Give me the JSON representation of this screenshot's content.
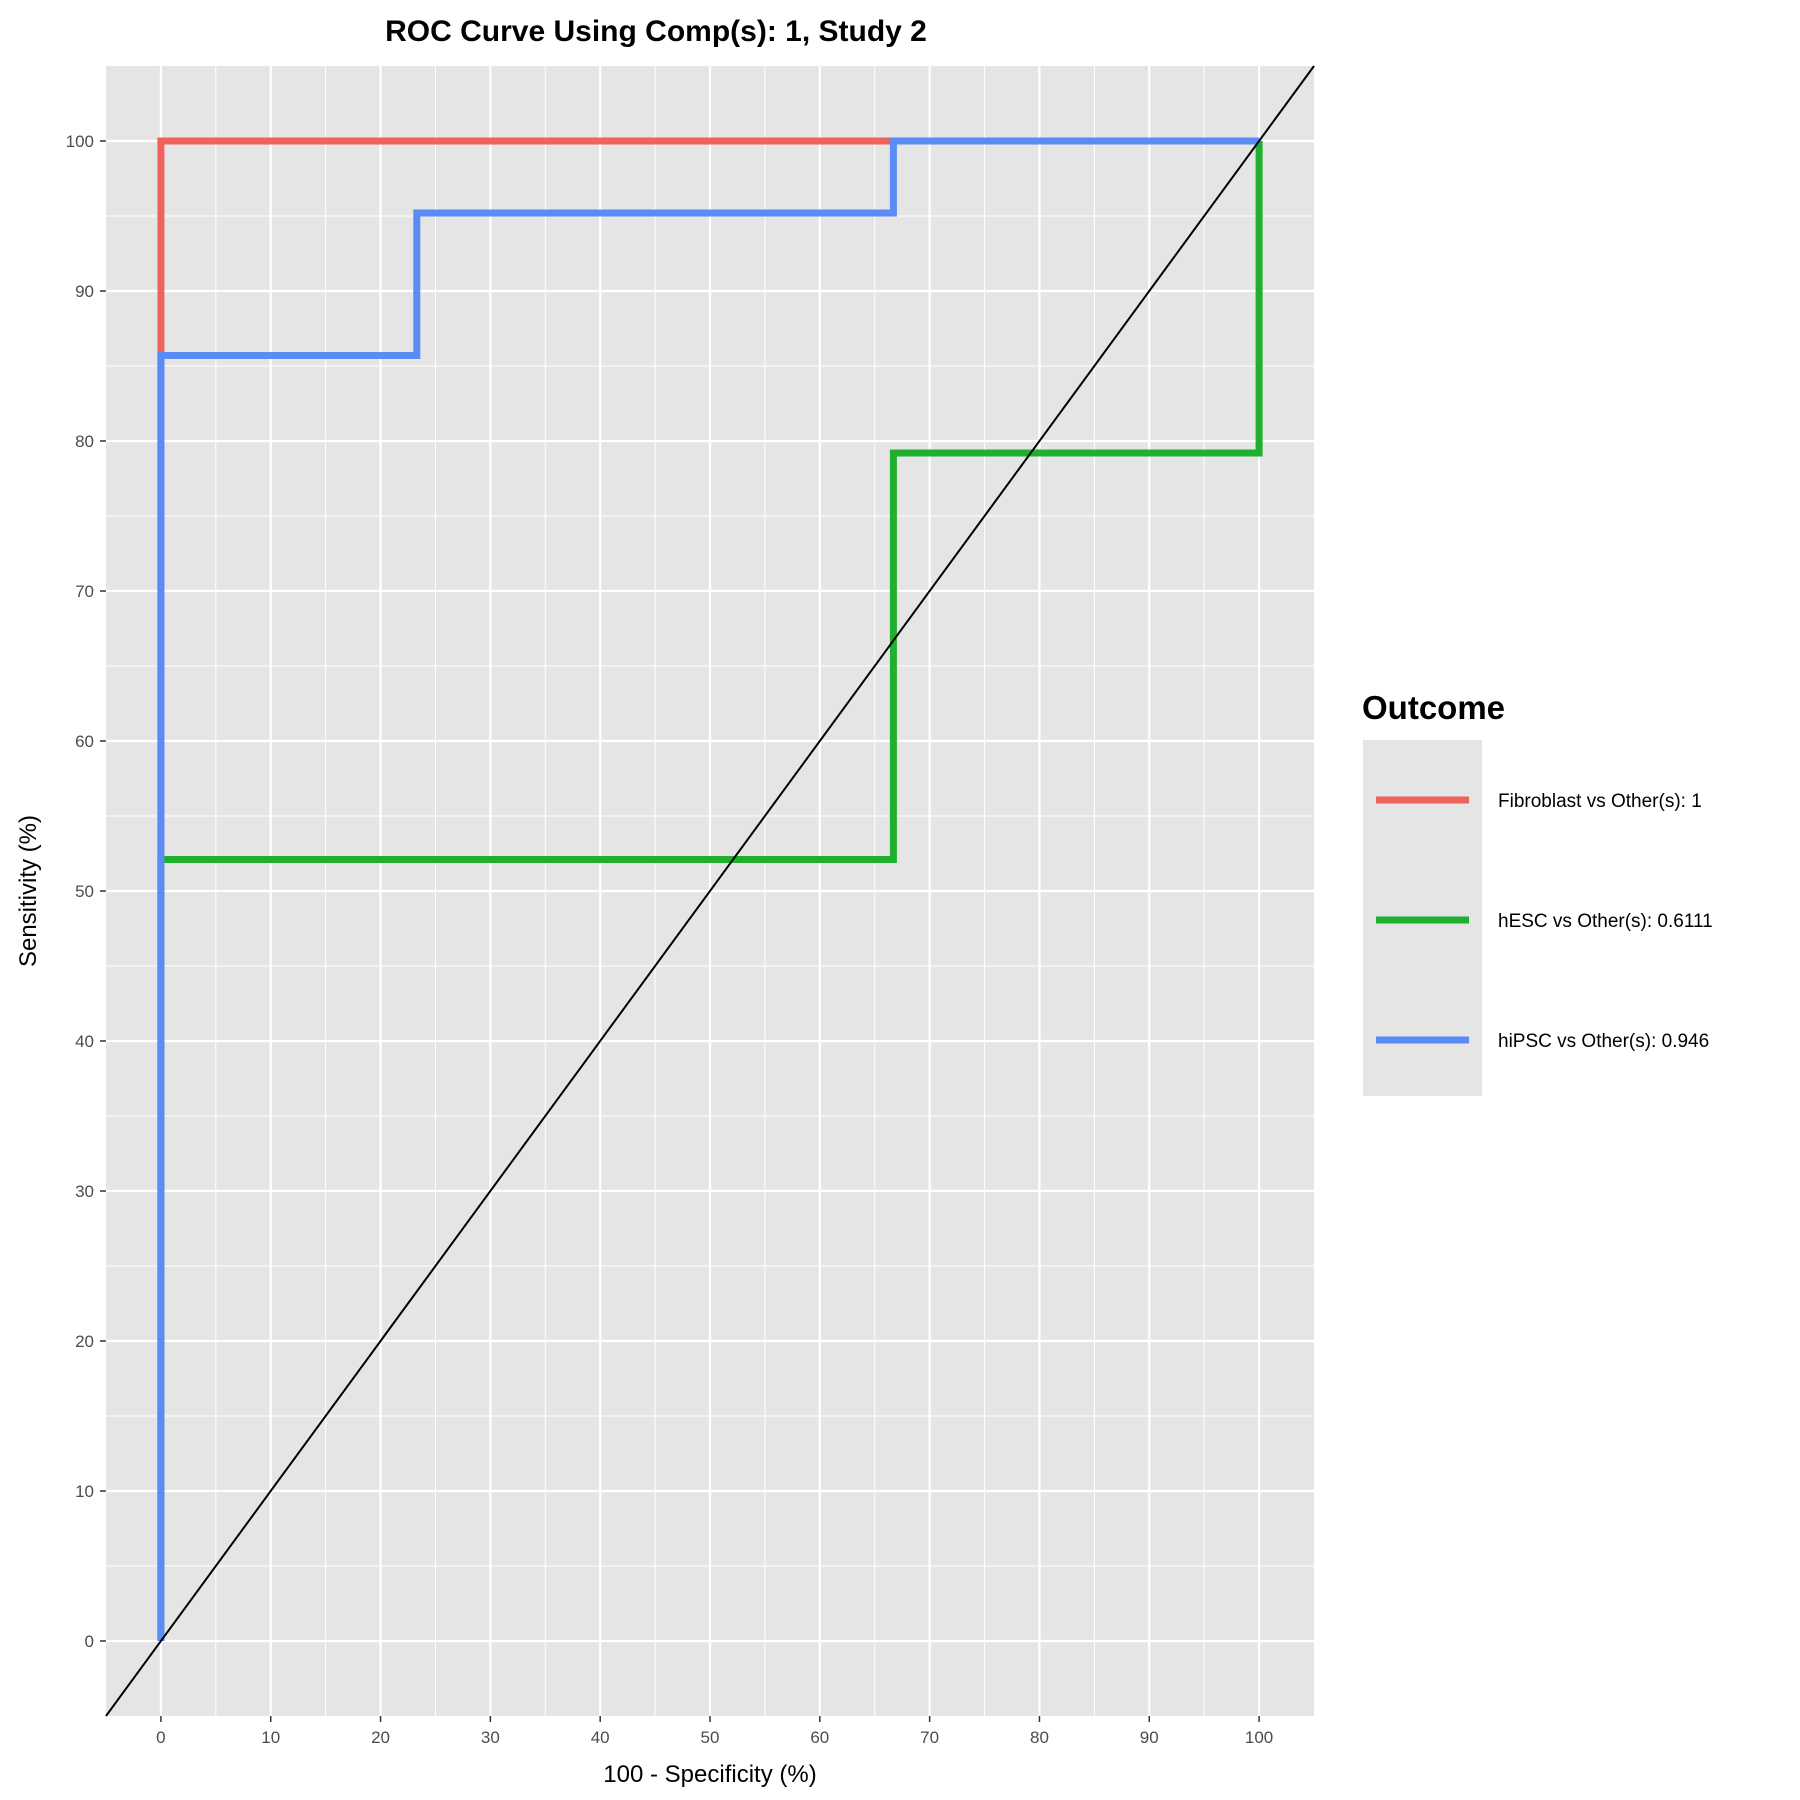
{
  "chart_data": {
    "type": "line",
    "title": "ROC Curve Using Comp(s): 1, Study 2",
    "xlabel": "100 - Specificity (%)",
    "ylabel": "Sensitivity (%)",
    "xlim": [
      -5,
      105
    ],
    "ylim": [
      -5,
      105
    ],
    "xticks": [
      0,
      10,
      20,
      30,
      40,
      50,
      60,
      70,
      80,
      90,
      100
    ],
    "yticks": [
      0,
      10,
      20,
      30,
      40,
      50,
      60,
      70,
      80,
      90,
      100
    ],
    "grid": true,
    "legend": {
      "title": "Outcome",
      "position": "right"
    },
    "colors": {
      "panel": "#e5e5e5",
      "grid": "#ffffff",
      "diagonal": "#000000"
    },
    "series": [
      {
        "name": "Fibroblast vs Other(s): 1",
        "color": "#f0635c",
        "points": [
          [
            0,
            0
          ],
          [
            0,
            100
          ],
          [
            66.7,
            100
          ],
          [
            100,
            100
          ]
        ]
      },
      {
        "name": "hESC vs Other(s): 0.6111",
        "color": "#20b02e",
        "points": [
          [
            0,
            0
          ],
          [
            0,
            52.1
          ],
          [
            66.7,
            52.1
          ],
          [
            66.7,
            79.2
          ],
          [
            100,
            79.2
          ],
          [
            100,
            100
          ]
        ]
      },
      {
        "name": "hiPSC vs Other(s): 0.946",
        "color": "#5b8cf5",
        "points": [
          [
            0,
            0
          ],
          [
            0,
            85.7
          ],
          [
            23.3,
            85.7
          ],
          [
            23.3,
            95.2
          ],
          [
            66.7,
            95.2
          ],
          [
            66.7,
            100
          ],
          [
            100,
            100
          ]
        ]
      }
    ],
    "reference_line": {
      "from": [
        0,
        0
      ],
      "to": [
        100,
        100
      ]
    }
  }
}
